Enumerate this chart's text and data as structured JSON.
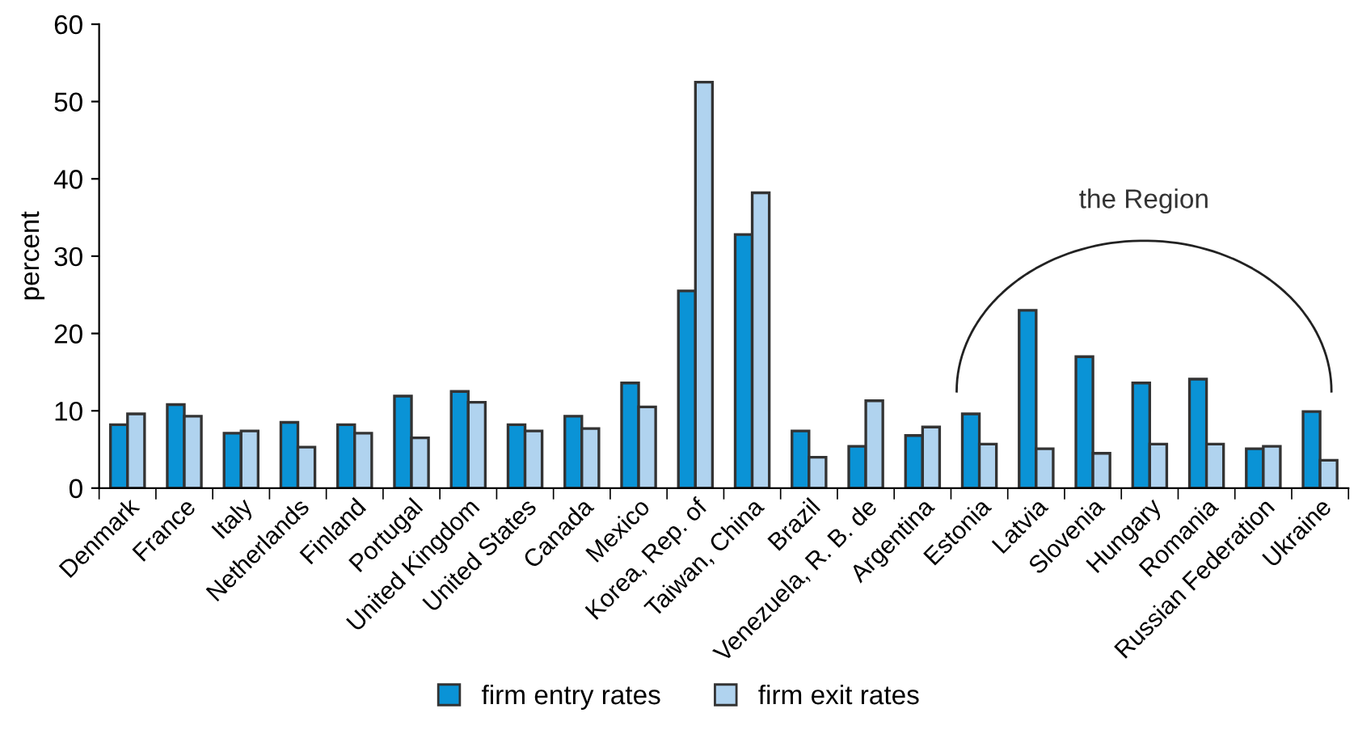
{
  "chart_data": {
    "type": "bar",
    "ylabel": "percent",
    "categories": [
      "Denmark",
      "France",
      "Italy",
      "Netherlands",
      "Finland",
      "Portugal",
      "United Kingdom",
      "United States",
      "Canada",
      "Mexico",
      "Korea, Rep. of",
      "Taiwan, China",
      "Brazil",
      "Venezuela, R. B. de",
      "Argentina",
      "Estonia",
      "Latvia",
      "Slovenia",
      "Hungary",
      "Romania",
      "Russian Federation",
      "Ukraine"
    ],
    "series": [
      {
        "name": "firm entry rates",
        "color": "#0a93d6",
        "values": [
          8.2,
          10.8,
          7.1,
          8.5,
          8.2,
          11.9,
          12.5,
          8.2,
          9.3,
          13.6,
          25.5,
          32.8,
          7.4,
          5.4,
          6.8,
          9.6,
          23.0,
          17.0,
          13.6,
          14.1,
          5.1,
          9.9
        ]
      },
      {
        "name": "firm exit rates",
        "color": "#b0d3ef",
        "values": [
          9.6,
          9.3,
          7.4,
          5.3,
          7.1,
          6.5,
          11.1,
          7.4,
          7.7,
          10.5,
          52.5,
          38.2,
          4.0,
          11.3,
          7.9,
          5.7,
          5.1,
          4.5,
          5.7,
          5.7,
          5.4,
          3.6
        ]
      }
    ],
    "ylim": [
      0,
      60
    ],
    "yticks": [
      0,
      10,
      20,
      30,
      40,
      50,
      60
    ],
    "annotations": [
      "the Region"
    ],
    "grid": false,
    "legend": "bottom"
  }
}
